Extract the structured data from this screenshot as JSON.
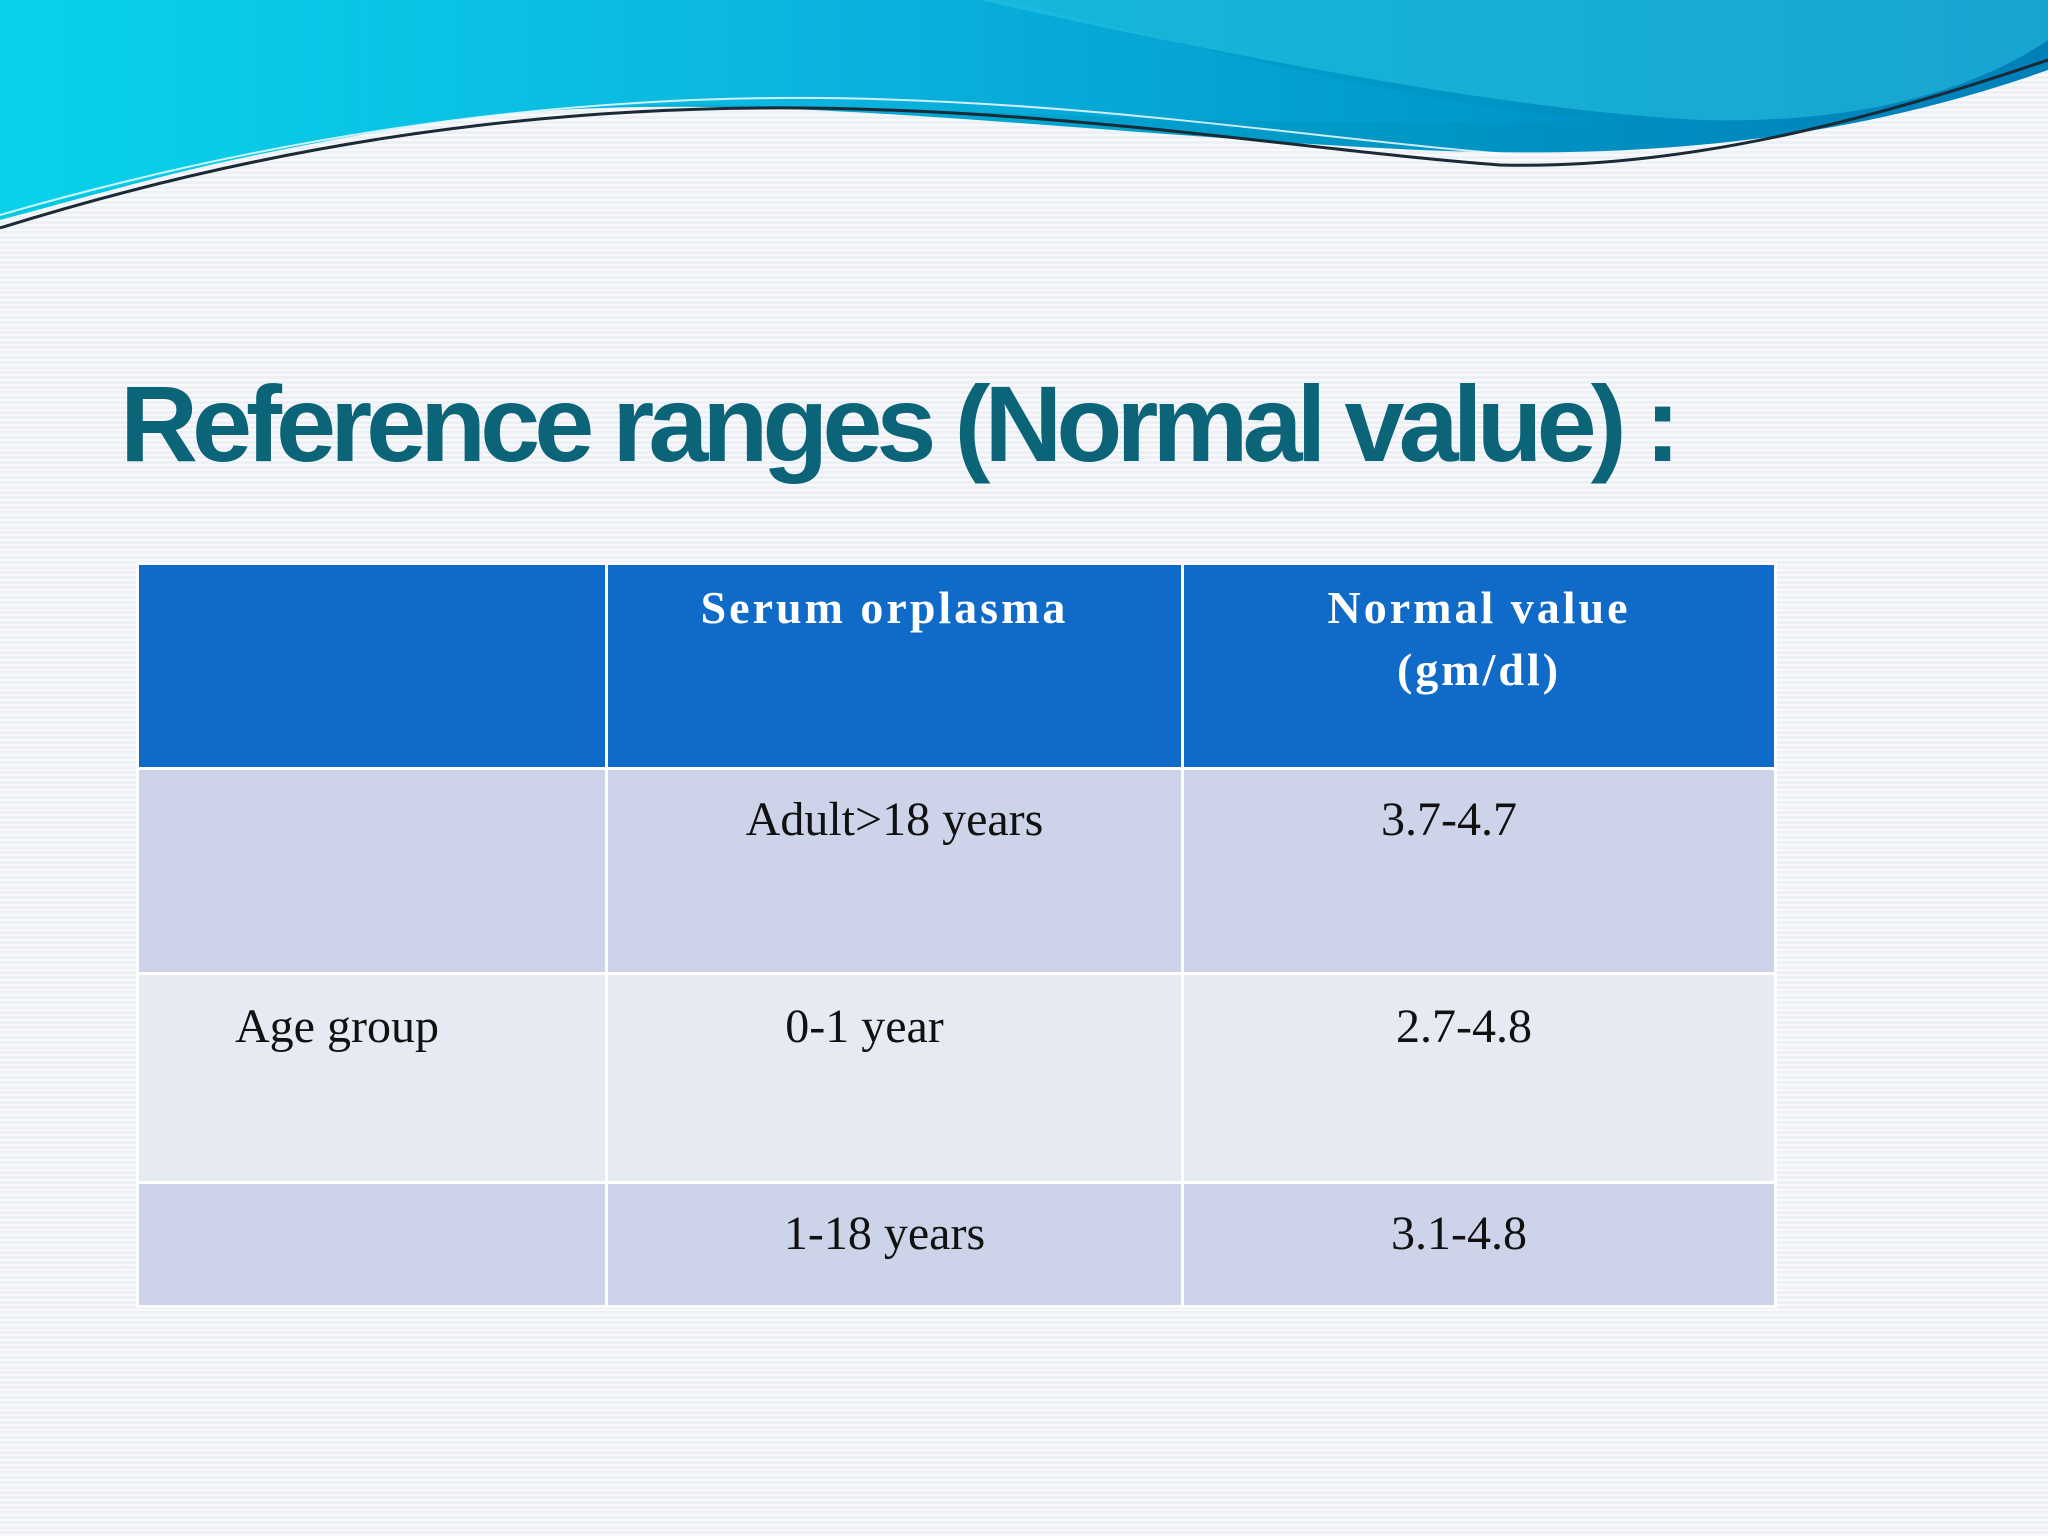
{
  "slide": {
    "title": "Reference ranges (Normal value) :"
  },
  "table": {
    "headers": [
      "",
      "Serum orplasma",
      "Normal value (gm/dl)"
    ],
    "header_value_line1": "Normal value",
    "header_value_line2": "(gm/dl)",
    "row_label": "Age group",
    "rows": [
      {
        "label": "",
        "group": "Adult>18 years",
        "value": "3.7-4.7"
      },
      {
        "label": "Age group",
        "group": "0-1 year",
        "value": "2.7-4.8"
      },
      {
        "label": "",
        "group": "1-18 years",
        "value": "3.1-4.8"
      }
    ]
  },
  "colors": {
    "title": "#0c6479",
    "header_bg": "#0f6bc7",
    "band_dark": "#cdd4ea",
    "band_light": "#e6eaf3",
    "wave_primary": "#00a3d4",
    "wave_light": "#3ee0f0"
  }
}
